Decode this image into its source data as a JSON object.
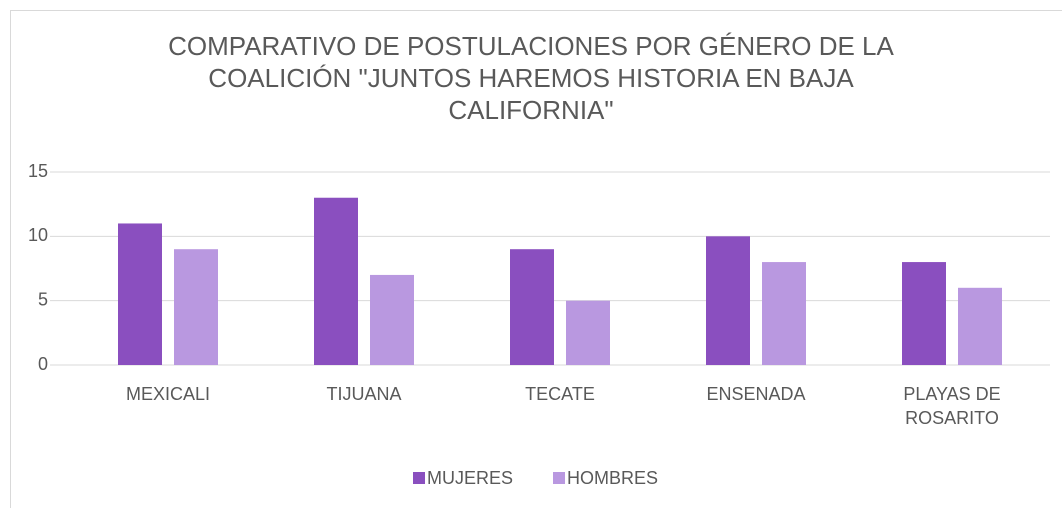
{
  "chart_data": {
    "type": "bar",
    "title": "COMPARATIVO DE POSTULACIONES POR GÉNERO DE LA COALICIÓN \"JUNTOS HAREMOS HISTORIA EN BAJA CALIFORNIA\"",
    "categories": [
      "MEXICALI",
      "TIJUANA",
      "TECATE",
      "ENSENADA",
      "PLAYAS DE ROSARITO"
    ],
    "series": [
      {
        "name": "MUJERES",
        "color": "#8a4fbf",
        "values": [
          11,
          13,
          9,
          10,
          8
        ]
      },
      {
        "name": "HOMBRES",
        "color": "#b998e0",
        "values": [
          9,
          7,
          5,
          8,
          6
        ]
      }
    ],
    "ylim": [
      0,
      15
    ],
    "yticks": [
      0,
      5,
      10,
      15
    ],
    "grid": true,
    "legend": "bottom"
  }
}
